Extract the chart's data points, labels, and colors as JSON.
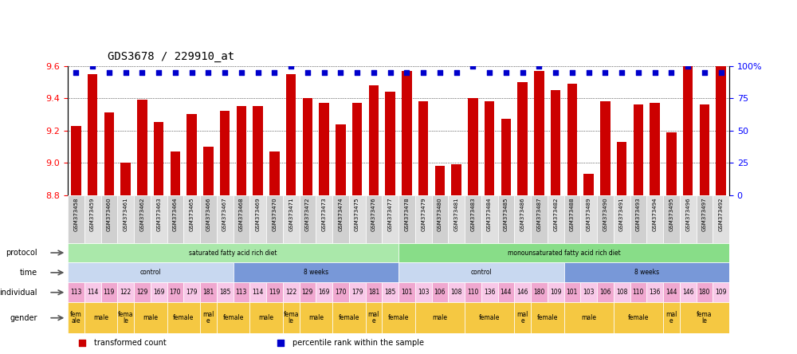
{
  "title": "GDS3678 / 229910_at",
  "samples": [
    "GSM373458",
    "GSM373459",
    "GSM373460",
    "GSM373461",
    "GSM373462",
    "GSM373463",
    "GSM373464",
    "GSM373465",
    "GSM373466",
    "GSM373467",
    "GSM373468",
    "GSM373469",
    "GSM373470",
    "GSM373471",
    "GSM373472",
    "GSM373473",
    "GSM373474",
    "GSM373475",
    "GSM373476",
    "GSM373477",
    "GSM373478",
    "GSM373479",
    "GSM373480",
    "GSM373481",
    "GSM373483",
    "GSM373484",
    "GSM373485",
    "GSM373486",
    "GSM373487",
    "GSM373482",
    "GSM373488",
    "GSM373489",
    "GSM373490",
    "GSM373491",
    "GSM373493",
    "GSM373494",
    "GSM373495",
    "GSM373496",
    "GSM373497",
    "GSM373492"
  ],
  "transformed_count": [
    9.23,
    9.55,
    9.31,
    9.0,
    9.39,
    9.25,
    9.07,
    9.3,
    9.1,
    9.32,
    9.35,
    9.35,
    9.07,
    9.55,
    9.4,
    9.37,
    9.24,
    9.37,
    9.48,
    9.44,
    9.57,
    9.38,
    8.98,
    8.99,
    9.4,
    9.38,
    9.27,
    9.5,
    9.57,
    9.45,
    9.49,
    8.93,
    9.38,
    9.13,
    9.36,
    9.37,
    9.19,
    9.74,
    9.36,
    9.68
  ],
  "percentile_rank": [
    95,
    100,
    95,
    95,
    95,
    95,
    95,
    95,
    95,
    95,
    95,
    95,
    95,
    100,
    95,
    95,
    95,
    95,
    95,
    95,
    95,
    95,
    95,
    95,
    100,
    95,
    95,
    95,
    100,
    95,
    95,
    95,
    95,
    95,
    95,
    95,
    95,
    100,
    95,
    95
  ],
  "ylim_left": [
    8.8,
    9.6
  ],
  "ylim_right": [
    0,
    100
  ],
  "yticks_left": [
    8.8,
    9.0,
    9.2,
    9.4,
    9.6
  ],
  "yticks_right": [
    0,
    25,
    50,
    75,
    100
  ],
  "bar_color": "#cc0000",
  "dot_color": "#0000cc",
  "bar_width": 0.6,
  "protocol_groups": [
    {
      "label": "saturated fatty acid rich diet",
      "start": 0,
      "end": 20,
      "color": "#aae8aa"
    },
    {
      "label": "monounsaturated fatty acid rich diet",
      "start": 20,
      "end": 40,
      "color": "#88dd88"
    }
  ],
  "time_groups": [
    {
      "label": "control",
      "start": 0,
      "end": 10,
      "color": "#c8d8f0"
    },
    {
      "label": "8 weeks",
      "start": 10,
      "end": 20,
      "color": "#7898d8"
    },
    {
      "label": "control",
      "start": 20,
      "end": 30,
      "color": "#c8d8f0"
    },
    {
      "label": "8 weeks",
      "start": 30,
      "end": 40,
      "color": "#7898d8"
    }
  ],
  "individual_groups": [
    {
      "label": "113",
      "start": 0,
      "end": 1,
      "color": "#f0a8d0"
    },
    {
      "label": "114",
      "start": 1,
      "end": 2,
      "color": "#f8c8e8"
    },
    {
      "label": "119",
      "start": 2,
      "end": 3,
      "color": "#f0a8d0"
    },
    {
      "label": "122",
      "start": 3,
      "end": 4,
      "color": "#f8c8e8"
    },
    {
      "label": "129",
      "start": 4,
      "end": 5,
      "color": "#f0a8d0"
    },
    {
      "label": "169",
      "start": 5,
      "end": 6,
      "color": "#f8c8e8"
    },
    {
      "label": "170",
      "start": 6,
      "end": 7,
      "color": "#f0a8d0"
    },
    {
      "label": "179",
      "start": 7,
      "end": 8,
      "color": "#f8c8e8"
    },
    {
      "label": "181",
      "start": 8,
      "end": 9,
      "color": "#f0a8d0"
    },
    {
      "label": "185",
      "start": 9,
      "end": 10,
      "color": "#f8c8e8"
    },
    {
      "label": "113",
      "start": 10,
      "end": 11,
      "color": "#f0a8d0"
    },
    {
      "label": "114",
      "start": 11,
      "end": 12,
      "color": "#f8c8e8"
    },
    {
      "label": "119",
      "start": 12,
      "end": 13,
      "color": "#f0a8d0"
    },
    {
      "label": "122",
      "start": 13,
      "end": 14,
      "color": "#f8c8e8"
    },
    {
      "label": "129",
      "start": 14,
      "end": 15,
      "color": "#f0a8d0"
    },
    {
      "label": "169",
      "start": 15,
      "end": 16,
      "color": "#f8c8e8"
    },
    {
      "label": "170",
      "start": 16,
      "end": 17,
      "color": "#f0a8d0"
    },
    {
      "label": "179",
      "start": 17,
      "end": 18,
      "color": "#f8c8e8"
    },
    {
      "label": "181",
      "start": 18,
      "end": 19,
      "color": "#f0a8d0"
    },
    {
      "label": "185",
      "start": 19,
      "end": 20,
      "color": "#f8c8e8"
    },
    {
      "label": "101",
      "start": 20,
      "end": 21,
      "color": "#f0a8d0"
    },
    {
      "label": "103",
      "start": 21,
      "end": 22,
      "color": "#f8c8e8"
    },
    {
      "label": "106",
      "start": 22,
      "end": 23,
      "color": "#f0a8d0"
    },
    {
      "label": "108",
      "start": 23,
      "end": 24,
      "color": "#f8c8e8"
    },
    {
      "label": "110",
      "start": 24,
      "end": 25,
      "color": "#f0a8d0"
    },
    {
      "label": "136",
      "start": 25,
      "end": 26,
      "color": "#f8c8e8"
    },
    {
      "label": "144",
      "start": 26,
      "end": 27,
      "color": "#f0a8d0"
    },
    {
      "label": "146",
      "start": 27,
      "end": 28,
      "color": "#f8c8e8"
    },
    {
      "label": "180",
      "start": 28,
      "end": 29,
      "color": "#f0a8d0"
    },
    {
      "label": "109",
      "start": 29,
      "end": 30,
      "color": "#f8c8e8"
    },
    {
      "label": "101",
      "start": 30,
      "end": 31,
      "color": "#f0a8d0"
    },
    {
      "label": "103",
      "start": 31,
      "end": 32,
      "color": "#f8c8e8"
    },
    {
      "label": "106",
      "start": 32,
      "end": 33,
      "color": "#f0a8d0"
    },
    {
      "label": "108",
      "start": 33,
      "end": 34,
      "color": "#f8c8e8"
    },
    {
      "label": "110",
      "start": 34,
      "end": 35,
      "color": "#f0a8d0"
    },
    {
      "label": "136",
      "start": 35,
      "end": 36,
      "color": "#f8c8e8"
    },
    {
      "label": "144",
      "start": 36,
      "end": 37,
      "color": "#f0a8d0"
    },
    {
      "label": "146",
      "start": 37,
      "end": 38,
      "color": "#f8c8e8"
    },
    {
      "label": "180",
      "start": 38,
      "end": 39,
      "color": "#f0a8d0"
    },
    {
      "label": "109",
      "start": 39,
      "end": 40,
      "color": "#f8c8e8"
    }
  ],
  "gender_groups": [
    {
      "label": "fem\nale",
      "start": 0,
      "end": 1,
      "color": "#f5c842"
    },
    {
      "label": "male",
      "start": 1,
      "end": 3,
      "color": "#f5c842"
    },
    {
      "label": "fema\nle",
      "start": 3,
      "end": 4,
      "color": "#f5c842"
    },
    {
      "label": "male",
      "start": 4,
      "end": 6,
      "color": "#f5c842"
    },
    {
      "label": "female",
      "start": 6,
      "end": 8,
      "color": "#f5c842"
    },
    {
      "label": "mal\ne",
      "start": 8,
      "end": 9,
      "color": "#f5c842"
    },
    {
      "label": "female",
      "start": 9,
      "end": 11,
      "color": "#f5c842"
    },
    {
      "label": "male",
      "start": 11,
      "end": 13,
      "color": "#f5c842"
    },
    {
      "label": "fema\nle",
      "start": 13,
      "end": 14,
      "color": "#f5c842"
    },
    {
      "label": "male",
      "start": 14,
      "end": 16,
      "color": "#f5c842"
    },
    {
      "label": "female",
      "start": 16,
      "end": 18,
      "color": "#f5c842"
    },
    {
      "label": "mal\ne",
      "start": 18,
      "end": 19,
      "color": "#f5c842"
    },
    {
      "label": "female",
      "start": 19,
      "end": 21,
      "color": "#f5c842"
    },
    {
      "label": "male",
      "start": 21,
      "end": 24,
      "color": "#f5c842"
    },
    {
      "label": "female",
      "start": 24,
      "end": 27,
      "color": "#f5c842"
    },
    {
      "label": "mal\ne",
      "start": 27,
      "end": 28,
      "color": "#f5c842"
    },
    {
      "label": "female",
      "start": 28,
      "end": 30,
      "color": "#f5c842"
    },
    {
      "label": "male",
      "start": 30,
      "end": 33,
      "color": "#f5c842"
    },
    {
      "label": "female",
      "start": 33,
      "end": 36,
      "color": "#f5c842"
    },
    {
      "label": "mal\ne",
      "start": 36,
      "end": 37,
      "color": "#f5c842"
    },
    {
      "label": "fema\nle",
      "start": 37,
      "end": 40,
      "color": "#f5c842"
    }
  ],
  "legend_items": [
    {
      "label": "transformed count",
      "color": "#cc0000"
    },
    {
      "label": "percentile rank within the sample",
      "color": "#0000cc"
    }
  ],
  "xtick_bg": "#d8d8d8",
  "fig_width": 10.0,
  "fig_height": 4.44,
  "dpi": 100
}
